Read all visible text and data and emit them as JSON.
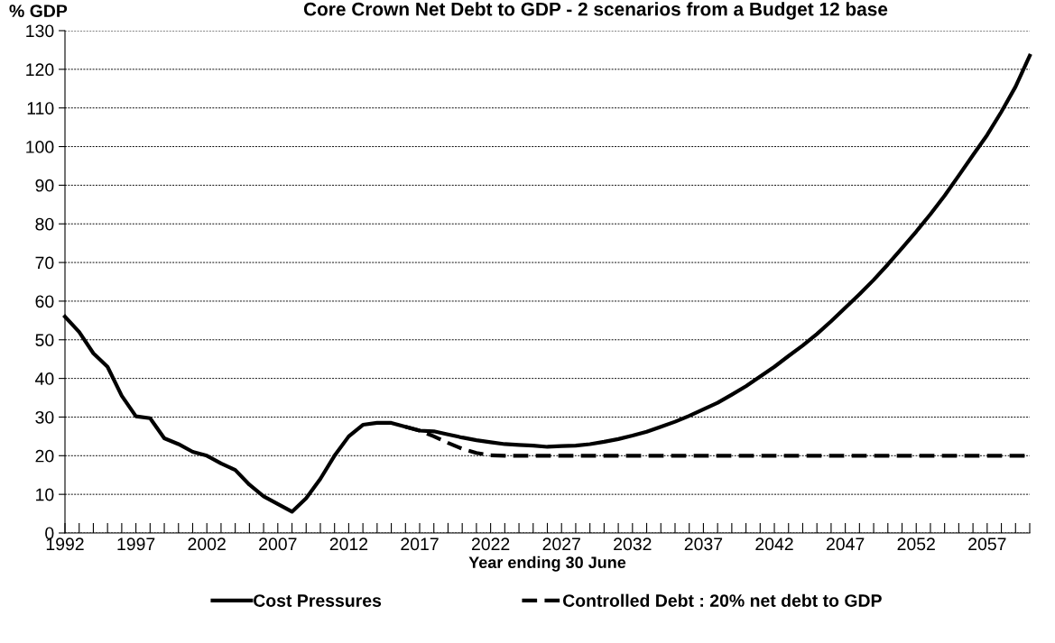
{
  "chart_data": {
    "type": "line",
    "title": "Core Crown Net Debt to GDP - 2 scenarios from a Budget 12 base",
    "ylabel": "% GDP",
    "xlabel": "Year ending 30 June",
    "x": [
      1992,
      1993,
      1994,
      1995,
      1996,
      1997,
      1998,
      1999,
      2000,
      2001,
      2002,
      2003,
      2004,
      2005,
      2006,
      2007,
      2008,
      2009,
      2010,
      2011,
      2012,
      2013,
      2014,
      2015,
      2016,
      2017,
      2018,
      2019,
      2020,
      2021,
      2022,
      2023,
      2024,
      2025,
      2026,
      2027,
      2028,
      2029,
      2030,
      2031,
      2032,
      2033,
      2034,
      2035,
      2036,
      2037,
      2038,
      2039,
      2040,
      2041,
      2042,
      2043,
      2044,
      2045,
      2046,
      2047,
      2048,
      2049,
      2050,
      2051,
      2052,
      2053,
      2054,
      2055,
      2056,
      2057,
      2058,
      2059,
      2060
    ],
    "series": [
      {
        "name": "Cost Pressures",
        "color": "#000000",
        "line_style": "solid",
        "values": [
          56,
          52,
          46.5,
          43,
          35.5,
          30.2,
          29.7,
          24.5,
          23,
          21,
          20,
          18,
          16.3,
          12.5,
          9.5,
          7.5,
          5.5,
          9,
          14,
          20,
          25,
          28,
          28.5,
          28.5,
          27.5,
          26.5,
          26.3,
          25.5,
          24.7,
          24,
          23.5,
          23,
          22.8,
          22.6,
          22.3,
          22.5,
          22.6,
          23,
          23.6,
          24.3,
          25.2,
          26.2,
          27.5,
          28.8,
          30.3,
          32,
          33.7,
          35.8,
          38,
          40.5,
          43,
          45.8,
          48.5,
          51.5,
          54.8,
          58.3,
          61.8,
          65.5,
          69.5,
          73.7,
          78,
          82.5,
          87.3,
          92.5,
          97.8,
          103,
          109,
          115.5,
          123.5
        ]
      },
      {
        "name": "Controlled Debt : 20% net debt to GDP",
        "color": "#000000",
        "line_style": "dashed",
        "values": [
          null,
          null,
          null,
          null,
          null,
          null,
          null,
          null,
          null,
          null,
          null,
          null,
          null,
          null,
          null,
          null,
          null,
          null,
          null,
          null,
          null,
          null,
          null,
          null,
          27.5,
          26.5,
          25,
          23.3,
          21.8,
          20.7,
          20.1,
          20,
          20,
          20,
          20,
          20,
          20,
          20,
          20,
          20,
          20,
          20,
          20,
          20,
          20,
          20,
          20,
          20,
          20,
          20,
          20,
          20,
          20,
          20,
          20,
          20,
          20,
          20,
          20,
          20,
          20,
          20,
          20,
          20,
          20,
          20,
          20,
          20,
          20
        ]
      }
    ],
    "xlim": [
      1992,
      2060
    ],
    "xticks": [
      1992,
      {
        "value": 1993,
        "label": null
      },
      {
        "value": 1994,
        "label": null
      },
      {
        "value": 1995,
        "label": null
      },
      {
        "value": 1996,
        "label": null
      },
      1997,
      {
        "value": 1998,
        "label": null
      },
      {
        "value": 1999,
        "label": null
      },
      {
        "value": 2000,
        "label": null
      },
      {
        "value": 2001,
        "label": null
      },
      2002,
      {
        "value": 2003,
        "label": null
      },
      {
        "value": 2004,
        "label": null
      },
      {
        "value": 2005,
        "label": null
      },
      {
        "value": 2006,
        "label": null
      },
      2007,
      {
        "value": 2008,
        "label": null
      },
      {
        "value": 2009,
        "label": null
      },
      {
        "value": 2010,
        "label": null
      },
      {
        "value": 2011,
        "label": null
      },
      2012,
      {
        "value": 2013,
        "label": null
      },
      {
        "value": 2014,
        "label": null
      },
      {
        "value": 2015,
        "label": null
      },
      {
        "value": 2016,
        "label": null
      },
      2017,
      {
        "value": 2018,
        "label": null
      },
      {
        "value": 2019,
        "label": null
      },
      {
        "value": 2020,
        "label": null
      },
      {
        "value": 2021,
        "label": null
      },
      2022,
      {
        "value": 2023,
        "label": null
      },
      {
        "value": 2024,
        "label": null
      },
      {
        "value": 2025,
        "label": null
      },
      {
        "value": 2026,
        "label": null
      },
      2027,
      {
        "value": 2028,
        "label": null
      },
      {
        "value": 2029,
        "label": null
      },
      {
        "value": 2030,
        "label": null
      },
      {
        "value": 2031,
        "label": null
      },
      2032,
      {
        "value": 2033,
        "label": null
      },
      {
        "value": 2034,
        "label": null
      },
      {
        "value": 2035,
        "label": null
      },
      {
        "value": 2036,
        "label": null
      },
      2037,
      {
        "value": 2038,
        "label": null
      },
      {
        "value": 2039,
        "label": null
      },
      {
        "value": 2040,
        "label": null
      },
      {
        "value": 2041,
        "label": null
      },
      2042,
      {
        "value": 2043,
        "label": null
      },
      {
        "value": 2044,
        "label": null
      },
      {
        "value": 2045,
        "label": null
      },
      {
        "value": 2046,
        "label": null
      },
      2047,
      {
        "value": 2048,
        "label": null
      },
      {
        "value": 2049,
        "label": null
      },
      {
        "value": 2050,
        "label": null
      },
      {
        "value": 2051,
        "label": null
      },
      2052,
      {
        "value": 2053,
        "label": null
      },
      {
        "value": 2054,
        "label": null
      },
      {
        "value": 2055,
        "label": null
      },
      {
        "value": 2056,
        "label": null
      },
      2057,
      {
        "value": 2058,
        "label": null
      },
      {
        "value": 2059,
        "label": null
      },
      {
        "value": 2060,
        "label": null
      }
    ],
    "ylim": [
      0,
      130
    ],
    "yticks": [
      0,
      10,
      20,
      30,
      40,
      50,
      60,
      70,
      80,
      90,
      100,
      110,
      120,
      130
    ],
    "grid": "y",
    "legend": "bottom",
    "marker": "none"
  }
}
